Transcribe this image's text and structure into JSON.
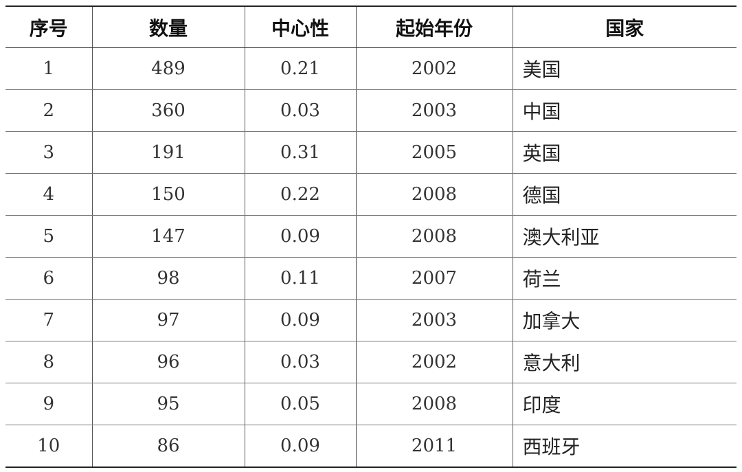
{
  "table": {
    "headers": [
      "序号",
      "数量",
      "中心性",
      "起始年份",
      "国家"
    ],
    "rows": [
      [
        "1",
        "489",
        "0.21",
        "2002",
        "美国"
      ],
      [
        "2",
        "360",
        "0.03",
        "2003",
        "中国"
      ],
      [
        "3",
        "191",
        "0.31",
        "2005",
        "英国"
      ],
      [
        "4",
        "150",
        "0.22",
        "2008",
        "德国"
      ],
      [
        "5",
        "147",
        "0.09",
        "2008",
        "澳大利亚"
      ],
      [
        "6",
        "98",
        "0.11",
        "2007",
        "荷兰"
      ],
      [
        "7",
        "97",
        "0.09",
        "2003",
        "加拿大"
      ],
      [
        "8",
        "96",
        "0.03",
        "2002",
        "意大利"
      ],
      [
        "9",
        "95",
        "0.05",
        "2008",
        "印度"
      ],
      [
        "10",
        "86",
        "0.09",
        "2011",
        "西班牙"
      ]
    ]
  }
}
